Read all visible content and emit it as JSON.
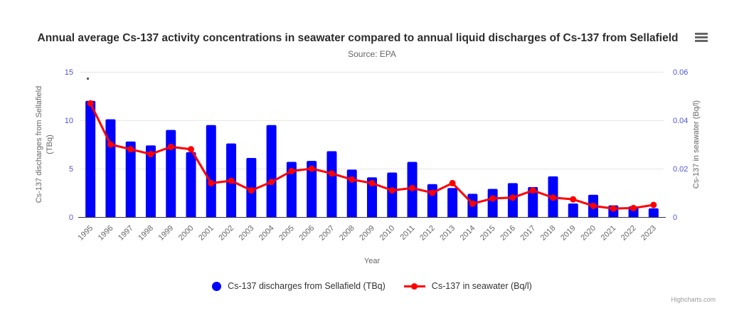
{
  "header": {
    "title": "Annual average Cs-137 activity concentrations in seawater compared to annual liquid discharges of Cs-137 from Sellafield",
    "subtitle": "Source: EPA",
    "menu_icon": "hamburger-icon"
  },
  "credits": "Highcharts.com",
  "colors": {
    "bar": "#0000ff",
    "line": "#ff0000",
    "axis_label": "#5055d5",
    "grid": "#e6e6e6",
    "axis_line": "#333333",
    "text_gray": "#666666"
  },
  "legend": {
    "items": [
      {
        "label": "Cs-137 discharges from Sellafield (TBq)",
        "marker": "blue-circle",
        "color": "#0000ff"
      },
      {
        "label": "Cs-137 in seawater (Bq/l)",
        "marker": "red-line-circle",
        "color": "#ff0000"
      }
    ]
  },
  "chart_data": {
    "type": "bar+line (dual y-axes)",
    "title": "Annual average Cs-137 activity concentrations in seawater compared to annual liquid discharges of Cs-137 from Sellafield",
    "subtitle": "Source: EPA",
    "xlabel": "Year",
    "grid": true,
    "legend_position": "bottom",
    "categories": [
      "1995",
      "1996",
      "1997",
      "1998",
      "1999",
      "2000",
      "2001",
      "2002",
      "2003",
      "2004",
      "2005",
      "2006",
      "2007",
      "2008",
      "2009",
      "2010",
      "2011",
      "2012",
      "2013",
      "2014",
      "2015",
      "2016",
      "2017",
      "2018",
      "2019",
      "2020",
      "2021",
      "2022",
      "2023"
    ],
    "series": [
      {
        "name": "Cs-137 discharges from Sellafield (TBq)",
        "type": "bar",
        "axis": "left",
        "color": "#0000ff",
        "values": [
          12.0,
          10.1,
          7.8,
          7.4,
          9.0,
          6.7,
          9.5,
          7.6,
          6.1,
          9.5,
          5.7,
          5.8,
          6.8,
          4.9,
          4.1,
          4.6,
          5.7,
          3.4,
          3.0,
          2.4,
          2.9,
          3.5,
          3.1,
          4.2,
          1.4,
          2.3,
          1.2,
          1.1,
          0.9
        ]
      },
      {
        "name": "Cs-137 in seawater (Bq/l)",
        "type": "line",
        "axis": "right",
        "color": "#ff0000",
        "values": [
          0.047,
          0.03,
          0.028,
          0.026,
          0.029,
          0.028,
          0.014,
          0.015,
          0.011,
          0.0145,
          0.019,
          0.02,
          0.018,
          0.0155,
          0.014,
          0.011,
          0.012,
          0.01,
          0.014,
          0.0055,
          0.0077,
          0.008,
          0.011,
          0.008,
          0.0073,
          0.0046,
          0.0035,
          0.0037,
          0.005
        ]
      }
    ],
    "y_left": {
      "title": "Cs-137 discharges from Sellafield (TBq)",
      "title_lines": [
        "Cs-137 discharges from Sellafield",
        "(TBq)"
      ],
      "tick_values": [
        0,
        5,
        10,
        15
      ],
      "tick_labels": [
        "0",
        "5",
        "10",
        "15"
      ],
      "max": 15
    },
    "y_right": {
      "title": "Cs-137 in seawater (Bq/l)",
      "tick_values": [
        0,
        0.02,
        0.04,
        0.06
      ],
      "tick_labels": [
        "0",
        "0.02",
        "0.04",
        "0.06"
      ],
      "max": 0.06
    }
  }
}
